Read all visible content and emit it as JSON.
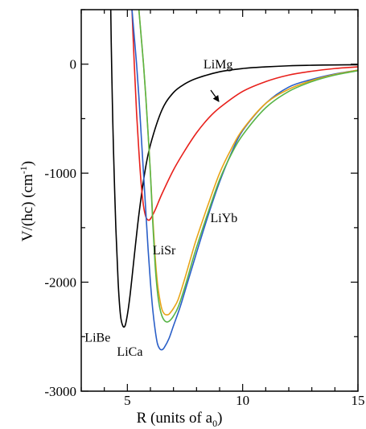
{
  "chart_data": {
    "type": "line",
    "xlabel": "R (units of a",
    "xlabel_sub": "0",
    "xlabel_close": ")",
    "ylabel": "V/(hc) (cm",
    "ylabel_sup": "-1",
    "ylabel_close": ")",
    "xlim": [
      3,
      15
    ],
    "ylim": [
      -3000,
      500
    ],
    "x_ticks": [
      5,
      10,
      15
    ],
    "x_tick_labels": [
      "5",
      "10",
      "15"
    ],
    "y_ticks": [
      0,
      -1000,
      -2000,
      -3000
    ],
    "y_tick_labels": [
      "0",
      "-1000",
      "-2000",
      "-3000"
    ],
    "grid": false,
    "legend": "none",
    "series": [
      {
        "name": "LiBe",
        "color": "#000000",
        "x": [
          4.28,
          4.3,
          4.35,
          4.4,
          4.5,
          4.6,
          4.7,
          4.8,
          4.9,
          5.0,
          5.1,
          5.2,
          5.3,
          5.5,
          5.75,
          6.0,
          6.5,
          7.0,
          7.5,
          8.0,
          9.0,
          10.0,
          11.0,
          12.0,
          13.0,
          14.0,
          15.0
        ],
        "y": [
          500,
          200,
          -350,
          -800,
          -1500,
          -2000,
          -2300,
          -2400,
          -2400,
          -2300,
          -2150,
          -1960,
          -1760,
          -1380,
          -1000,
          -740,
          -420,
          -260,
          -180,
          -130,
          -70,
          -40,
          -25,
          -15,
          -10,
          -7,
          -5
        ]
      },
      {
        "name": "LiMg",
        "color": "#e8201b",
        "x": [
          5.2,
          5.3,
          5.4,
          5.5,
          5.6,
          5.7,
          5.8,
          5.9,
          6.0,
          6.2,
          6.5,
          7.0,
          7.5,
          8.0,
          8.5,
          9.0,
          10.0,
          11.0,
          12.0,
          13.0,
          14.0,
          15.0
        ],
        "y": [
          500,
          0,
          -450,
          -800,
          -1100,
          -1300,
          -1400,
          -1430,
          -1420,
          -1340,
          -1190,
          -970,
          -790,
          -630,
          -500,
          -400,
          -250,
          -160,
          -100,
          -65,
          -40,
          -25
        ]
      },
      {
        "name": "LiCa",
        "color": "#2a5fc8",
        "x": [
          5.2,
          5.3,
          5.4,
          5.5,
          5.6,
          5.7,
          5.8,
          5.9,
          6.0,
          6.1,
          6.2,
          6.3,
          6.4,
          6.5,
          6.6,
          6.8,
          7.0,
          7.3,
          7.6,
          8.0,
          8.5,
          9.0,
          9.5,
          10.0,
          11.0,
          12.0,
          13.0,
          14.0,
          15.0
        ],
        "y": [
          500,
          250,
          0,
          -300,
          -650,
          -1000,
          -1350,
          -1700,
          -2000,
          -2250,
          -2430,
          -2560,
          -2610,
          -2620,
          -2600,
          -2520,
          -2400,
          -2220,
          -2010,
          -1730,
          -1390,
          -1080,
          -820,
          -610,
          -360,
          -210,
          -140,
          -90,
          -55
        ]
      },
      {
        "name": "LiSr",
        "color": "#e8a417",
        "x": [
          5.5,
          5.6,
          5.7,
          5.8,
          5.9,
          6.0,
          6.1,
          6.2,
          6.3,
          6.4,
          6.5,
          6.6,
          6.7,
          6.8,
          6.9,
          7.0,
          7.2,
          7.5,
          7.8,
          8.0,
          8.5,
          9.0,
          9.5,
          10.0,
          11.0,
          12.0,
          13.0,
          14.0,
          15.0
        ],
        "y": [
          500,
          250,
          0,
          -300,
          -640,
          -1000,
          -1400,
          -1750,
          -2000,
          -2150,
          -2250,
          -2290,
          -2300,
          -2295,
          -2270,
          -2240,
          -2160,
          -1960,
          -1740,
          -1600,
          -1290,
          -1000,
          -780,
          -600,
          -360,
          -230,
          -150,
          -95,
          -55
        ]
      },
      {
        "name": "LiYb",
        "color": "#58b548",
        "x": [
          5.5,
          5.6,
          5.7,
          5.8,
          5.9,
          6.0,
          6.1,
          6.2,
          6.3,
          6.4,
          6.5,
          6.6,
          6.7,
          6.8,
          6.9,
          7.0,
          7.2,
          7.5,
          7.8,
          8.0,
          8.5,
          9.0,
          9.5,
          10.0,
          11.0,
          12.0,
          13.0,
          14.0,
          15.0
        ],
        "y": [
          500,
          250,
          0,
          -300,
          -640,
          -1000,
          -1450,
          -1830,
          -2080,
          -2230,
          -2310,
          -2350,
          -2365,
          -2360,
          -2340,
          -2310,
          -2230,
          -2040,
          -1820,
          -1680,
          -1360,
          -1060,
          -830,
          -650,
          -400,
          -250,
          -160,
          -100,
          -60
        ]
      }
    ],
    "annotations": [
      {
        "text": "LiMg",
        "x": 8.3,
        "y": -40
      },
      {
        "text": "LiSr",
        "x": 6.1,
        "y": -1745
      },
      {
        "text": "LiYb",
        "x": 8.6,
        "y": -1450
      },
      {
        "text": "LiBe",
        "x": 3.15,
        "y": -2545
      },
      {
        "text": "LiCa",
        "x": 4.55,
        "y": -2675
      }
    ]
  }
}
